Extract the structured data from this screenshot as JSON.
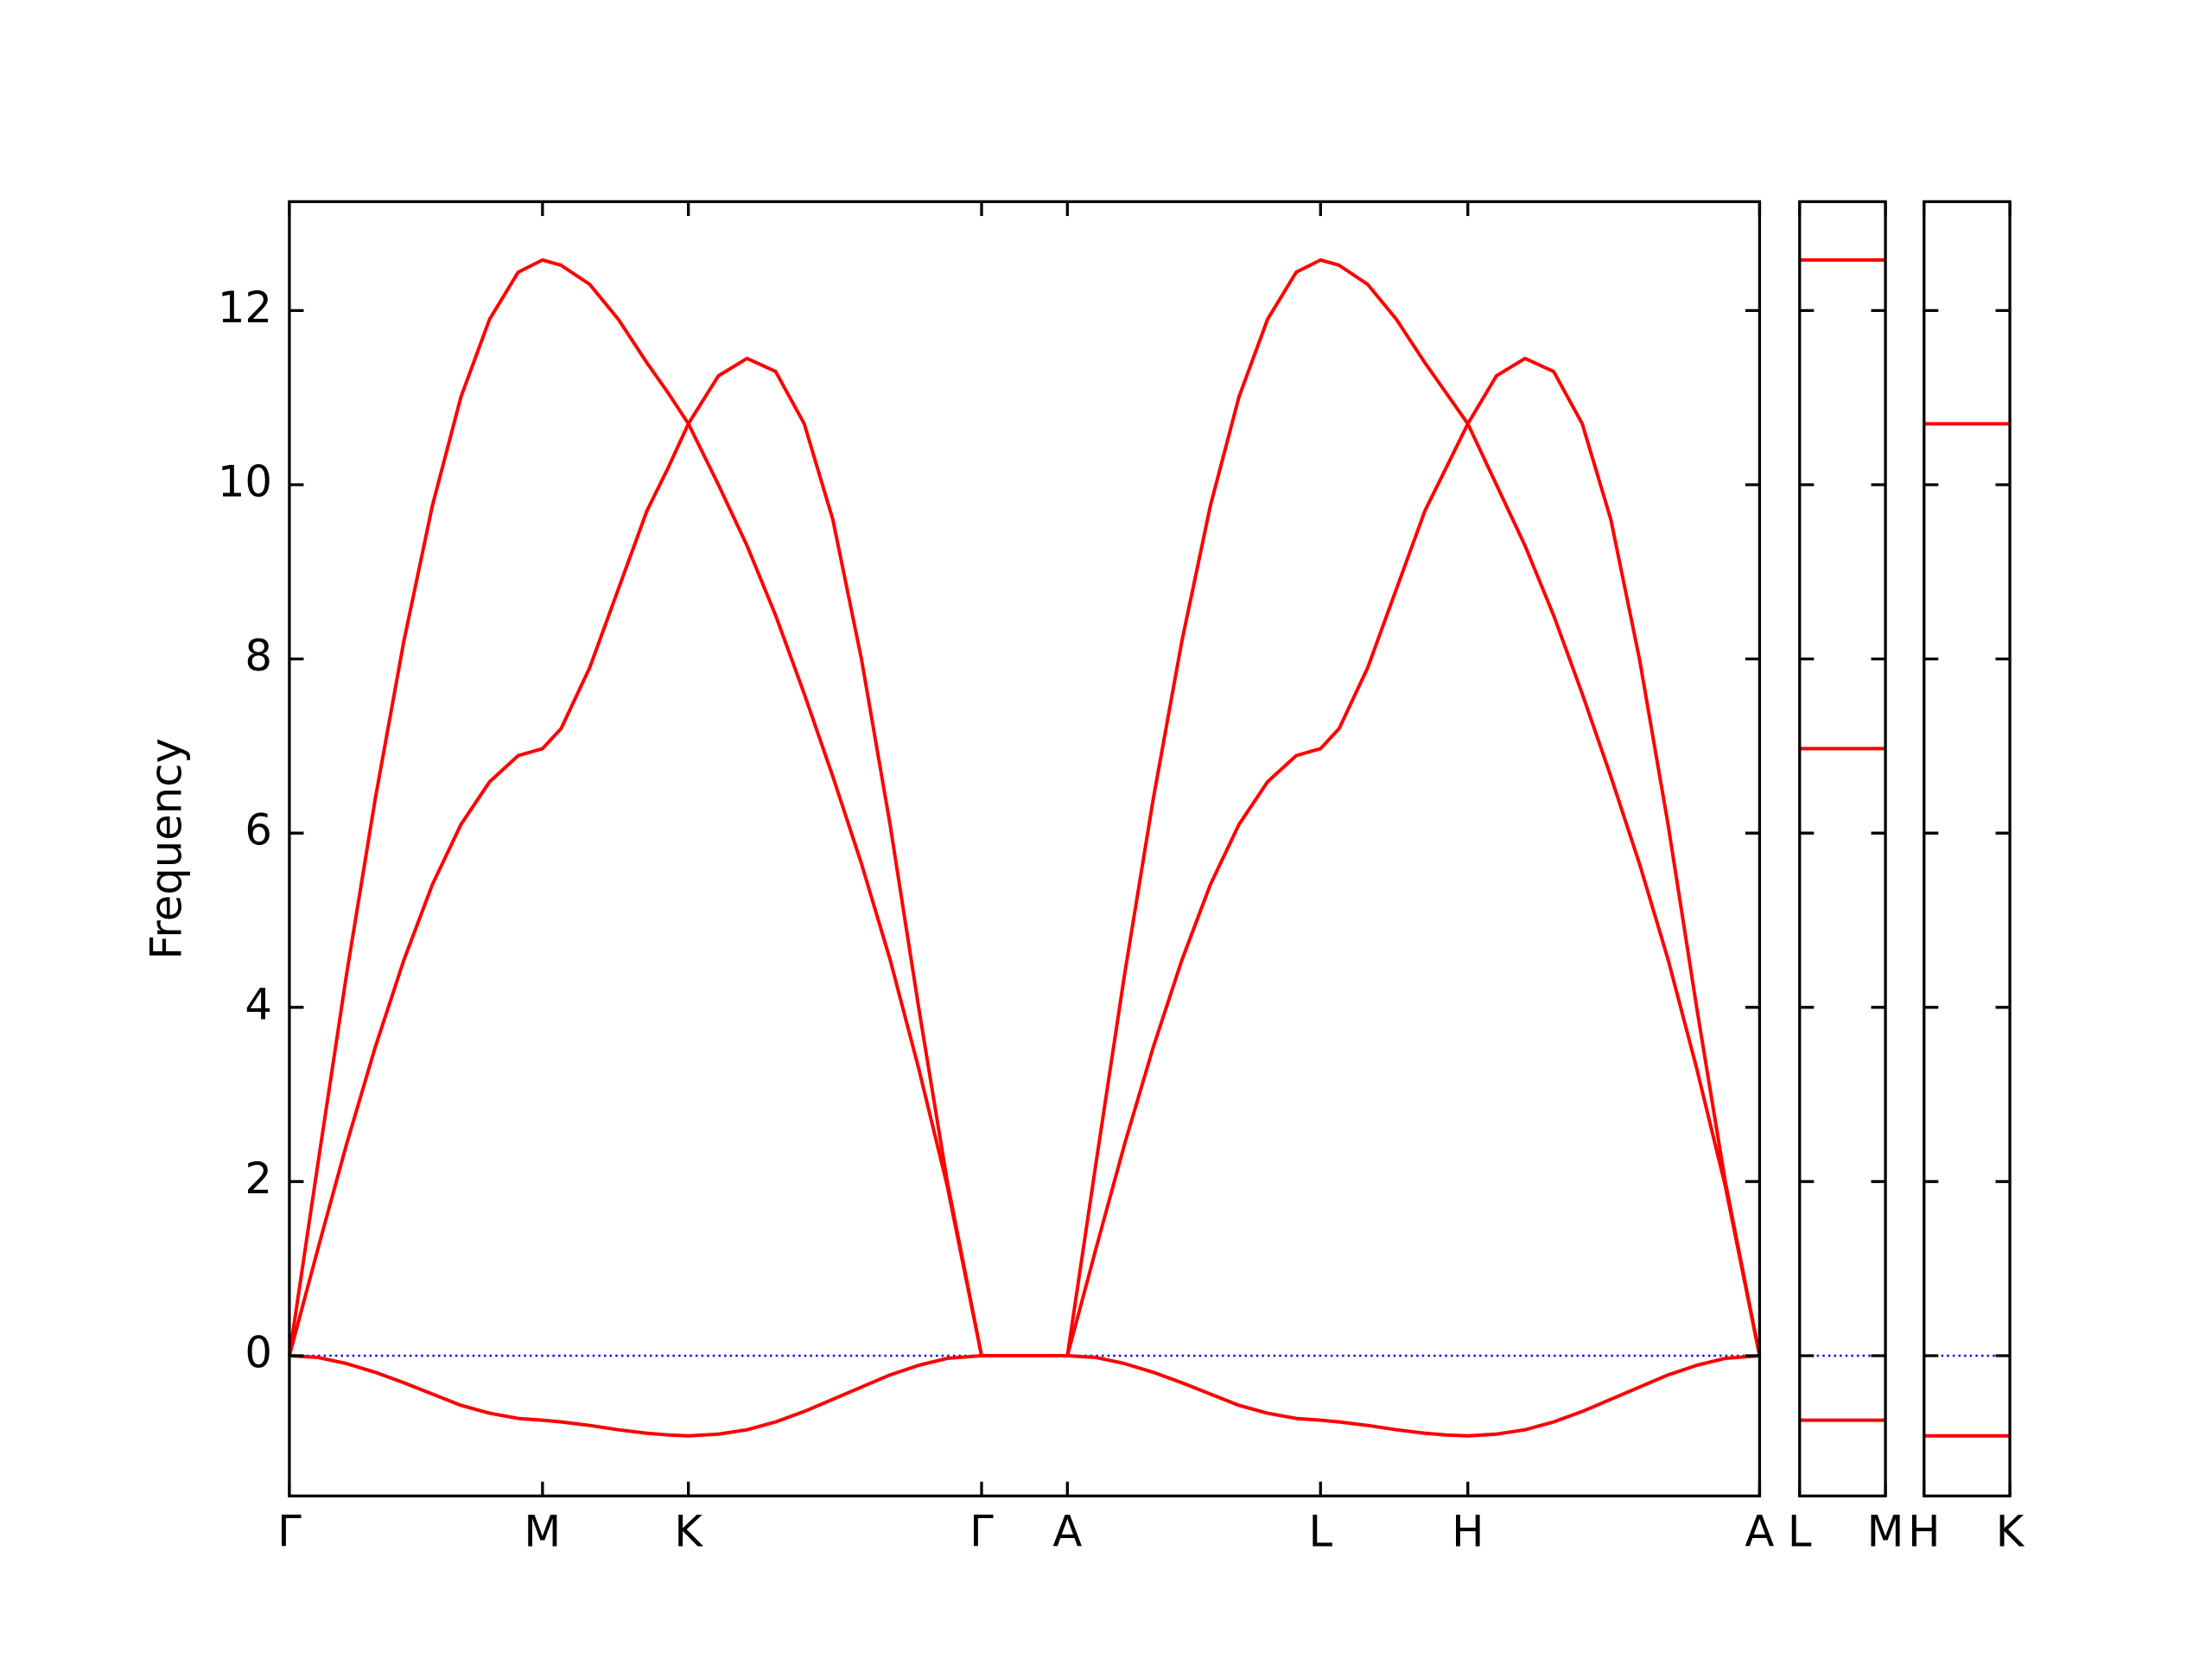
{
  "chart_data": [
    {
      "type": "line",
      "ylabel": "Frequency",
      "x": [
        0,
        0.02,
        0.04,
        0.06,
        0.08,
        0.1,
        0.12,
        0.14,
        0.16,
        0.177,
        0.19,
        0.21,
        0.23,
        0.25,
        0.265,
        0.279,
        0.3,
        0.32,
        0.34,
        0.36,
        0.38,
        0.4,
        0.42,
        0.44,
        0.46,
        0.484,
        0.544,
        0.564,
        0.584,
        0.604,
        0.624,
        0.644,
        0.664,
        0.684,
        0.704,
        0.721,
        0.734,
        0.754,
        0.774,
        0.794,
        0.809,
        0.824,
        0.844,
        0.864,
        0.884,
        0.904,
        0.924,
        0.944,
        0.964,
        0.984,
        1.004,
        1.028
      ],
      "series": [
        {
          "color": "#ff0000",
          "values": [
            0,
            2.21,
            4.38,
            6.39,
            8.2,
            9.76,
            11.01,
            11.9,
            12.44,
            12.58,
            12.52,
            12.3,
            11.9,
            11.4,
            11.05,
            10.7,
            10.0,
            9.3,
            8.5,
            7.6,
            6.65,
            5.65,
            4.55,
            3.3,
            1.95,
            0,
            0,
            2.21,
            4.38,
            6.39,
            8.2,
            9.76,
            11.01,
            11.9,
            12.44,
            12.58,
            12.52,
            12.3,
            11.9,
            11.4,
            11.05,
            10.7,
            10.0,
            9.3,
            8.5,
            7.6,
            6.65,
            5.65,
            4.55,
            3.3,
            1.95,
            0
          ]
        },
        {
          "color": "#ff0000",
          "values": [
            0,
            1.23,
            2.43,
            3.54,
            4.54,
            5.41,
            6.1,
            6.59,
            6.89,
            6.97,
            7.2,
            7.9,
            8.8,
            9.7,
            10.2,
            10.7,
            11.25,
            11.45,
            11.3,
            10.7,
            9.6,
            8.0,
            6.1,
            4.0,
            2.0,
            0,
            0,
            1.23,
            2.43,
            3.54,
            4.54,
            5.41,
            6.1,
            6.59,
            6.89,
            6.97,
            7.2,
            7.9,
            8.8,
            9.7,
            10.2,
            10.7,
            11.25,
            11.45,
            11.3,
            10.7,
            9.6,
            8.0,
            6.1,
            4.0,
            2.0,
            0
          ]
        },
        {
          "color": "#ff0000",
          "values": [
            0,
            -0.02,
            -0.09,
            -0.19,
            -0.31,
            -0.44,
            -0.57,
            -0.66,
            -0.72,
            -0.74,
            -0.76,
            -0.8,
            -0.85,
            -0.89,
            -0.91,
            -0.92,
            -0.9,
            -0.85,
            -0.76,
            -0.64,
            -0.5,
            -0.36,
            -0.22,
            -0.11,
            -0.03,
            0,
            0,
            -0.02,
            -0.09,
            -0.19,
            -0.31,
            -0.44,
            -0.57,
            -0.66,
            -0.72,
            -0.74,
            -0.76,
            -0.8,
            -0.85,
            -0.89,
            -0.91,
            -0.92,
            -0.9,
            -0.85,
            -0.76,
            -0.64,
            -0.5,
            -0.36,
            -0.22,
            -0.11,
            -0.03,
            0
          ]
        }
      ],
      "xlim": [
        0,
        1.028
      ],
      "ylim": [
        -1.61,
        13.25
      ],
      "xticks": [
        {
          "value": 0,
          "label": "Γ"
        },
        {
          "value": 0.177,
          "label": "M"
        },
        {
          "value": 0.279,
          "label": "K"
        },
        {
          "value": 0.484,
          "label": "Γ"
        },
        {
          "value": 0.544,
          "label": "A"
        },
        {
          "value": 0.721,
          "label": "L"
        },
        {
          "value": 0.824,
          "label": "H"
        },
        {
          "value": 1.028,
          "label": "A"
        }
      ],
      "yticks": [
        0,
        2,
        4,
        6,
        8,
        10,
        12
      ],
      "show_ytick_labels": true,
      "zero_line": {
        "value": 0,
        "color": "#0000ff",
        "style": "dotted"
      }
    },
    {
      "type": "line",
      "x": [
        0,
        1
      ],
      "series": [
        {
          "color": "#ff0000",
          "values": [
            12.58,
            12.58
          ]
        },
        {
          "color": "#ff0000",
          "values": [
            6.97,
            6.97
          ]
        },
        {
          "color": "#ff0000",
          "values": [
            -0.74,
            -0.74
          ]
        }
      ],
      "xlim": [
        0,
        1
      ],
      "ylim": [
        -1.61,
        13.25
      ],
      "xticks": [
        {
          "value": 0,
          "label": "L"
        },
        {
          "value": 1,
          "label": "M"
        }
      ],
      "yticks": [
        0,
        2,
        4,
        6,
        8,
        10,
        12
      ],
      "show_ytick_labels": false,
      "zero_line": {
        "value": 0,
        "color": "#0000ff",
        "style": "dotted"
      }
    },
    {
      "type": "line",
      "x": [
        0,
        1
      ],
      "series": [
        {
          "color": "#ff0000",
          "values": [
            10.7,
            10.7
          ]
        },
        {
          "color": "#ff0000",
          "values": [
            10.7,
            10.7
          ]
        },
        {
          "color": "#ff0000",
          "values": [
            -0.92,
            -0.92
          ]
        }
      ],
      "xlim": [
        0,
        1
      ],
      "ylim": [
        -1.61,
        13.25
      ],
      "xticks": [
        {
          "value": 0,
          "label": "H"
        },
        {
          "value": 1,
          "label": "K"
        }
      ],
      "yticks": [
        0,
        2,
        4,
        6,
        8,
        10,
        12
      ],
      "show_ytick_labels": false,
      "zero_line": {
        "value": 0,
        "color": "#0000ff",
        "style": "dotted"
      }
    }
  ]
}
